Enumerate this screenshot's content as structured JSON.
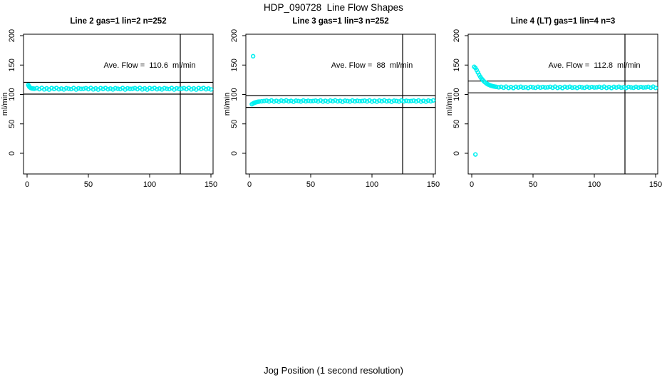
{
  "title": "HDP_090728  Line Flow Shapes",
  "xlabel": "Jog Position (1 second resolution)",
  "colors": {
    "point": "#00F0F0",
    "axis": "#000000"
  },
  "chart_data": [
    {
      "type": "scatter",
      "title": "Line 2 gas=1 lin=2 n=252",
      "annotation": "Ave. Flow =  110.6  ml/min",
      "ave_flow": 110.6,
      "n": 252,
      "ylabel": "ml/min",
      "xlim": [
        0,
        150
      ],
      "ylim": [
        0,
        200
      ],
      "x_ticks": [
        0,
        50,
        100,
        150
      ],
      "y_ticks": [
        0,
        50,
        100,
        150,
        200
      ],
      "hlines": [
        120.6,
        100.6
      ],
      "vline": 125,
      "points": [
        [
          1,
          116
        ],
        [
          1.5,
          114
        ],
        [
          2,
          112.5
        ],
        [
          3,
          111
        ],
        [
          4,
          110.3
        ],
        [
          5,
          110
        ],
        [
          6,
          109.8
        ],
        [
          8,
          110.7
        ],
        [
          10,
          109.1
        ],
        [
          12,
          111.1
        ],
        [
          14,
          108.7
        ],
        [
          16,
          110.3
        ],
        [
          18,
          108.4
        ],
        [
          20,
          110.8
        ],
        [
          22,
          109.4
        ],
        [
          24,
          111.0
        ],
        [
          26,
          108.9
        ],
        [
          28,
          110.1
        ],
        [
          30,
          108.6
        ],
        [
          32,
          110.6
        ],
        [
          34,
          109.8
        ],
        [
          36,
          109.2
        ],
        [
          38,
          110.9
        ],
        [
          40,
          108.5
        ],
        [
          42,
          110.4
        ],
        [
          44,
          109.6
        ],
        [
          46,
          109.8
        ],
        [
          48,
          110.7
        ],
        [
          50,
          109.1
        ],
        [
          52,
          111.1
        ],
        [
          54,
          108.7
        ],
        [
          56,
          110.3
        ],
        [
          58,
          108.4
        ],
        [
          60,
          110.8
        ],
        [
          62,
          109.4
        ],
        [
          64,
          111.0
        ],
        [
          66,
          108.9
        ],
        [
          68,
          110.1
        ],
        [
          70,
          108.6
        ],
        [
          72,
          110.6
        ],
        [
          74,
          109.8
        ],
        [
          76,
          109.2
        ],
        [
          78,
          110.9
        ],
        [
          80,
          108.5
        ],
        [
          82,
          110.4
        ],
        [
          84,
          109.6
        ],
        [
          86,
          109.8
        ],
        [
          88,
          110.7
        ],
        [
          90,
          109.1
        ],
        [
          92,
          111.1
        ],
        [
          94,
          108.7
        ],
        [
          96,
          110.3
        ],
        [
          98,
          108.4
        ],
        [
          100,
          110.8
        ],
        [
          102,
          109.4
        ],
        [
          104,
          111.0
        ],
        [
          106,
          108.9
        ],
        [
          108,
          110.1
        ],
        [
          110,
          108.6
        ],
        [
          112,
          110.6
        ],
        [
          114,
          109.8
        ],
        [
          116,
          109.2
        ],
        [
          118,
          110.9
        ],
        [
          120,
          108.5
        ],
        [
          122,
          110.4
        ],
        [
          124,
          109.6
        ],
        [
          126,
          109.8
        ],
        [
          128,
          110.7
        ],
        [
          130,
          109.1
        ],
        [
          132,
          111.1
        ],
        [
          134,
          108.7
        ],
        [
          136,
          110.3
        ],
        [
          138,
          108.4
        ],
        [
          140,
          110.8
        ],
        [
          142,
          109.4
        ],
        [
          144,
          111.0
        ],
        [
          146,
          108.9
        ],
        [
          148,
          110.1
        ],
        [
          150,
          108.6
        ]
      ]
    },
    {
      "type": "scatter",
      "title": "Line 3 gas=1 lin=3 n=252",
      "annotation": "Ave. Flow =  88  ml/min",
      "ave_flow": 88,
      "n": 252,
      "ylabel": "ml/min",
      "xlim": [
        0,
        150
      ],
      "ylim": [
        0,
        200
      ],
      "x_ticks": [
        0,
        50,
        100,
        150
      ],
      "y_ticks": [
        0,
        50,
        100,
        150,
        200
      ],
      "hlines": [
        98,
        78
      ],
      "vline": 125,
      "points": [
        [
          3,
          165
        ],
        [
          2,
          83.5
        ],
        [
          3,
          84.8
        ],
        [
          4,
          85.8
        ],
        [
          5,
          86.5
        ],
        [
          6,
          87.2
        ],
        [
          7,
          87.6
        ],
        [
          8,
          88.0
        ],
        [
          10,
          88.4
        ],
        [
          12,
          88.8
        ],
        [
          14,
          89.5
        ],
        [
          16,
          88.2
        ],
        [
          18,
          89.8
        ],
        [
          20,
          88.0
        ],
        [
          22,
          89.2
        ],
        [
          24,
          87.9
        ],
        [
          26,
          89.6
        ],
        [
          28,
          88.5
        ],
        [
          30,
          89.9
        ],
        [
          32,
          88.3
        ],
        [
          34,
          89.1
        ],
        [
          36,
          87.8
        ],
        [
          38,
          89.4
        ],
        [
          40,
          88.8
        ],
        [
          42,
          88.1
        ],
        [
          44,
          89.7
        ],
        [
          46,
          88.4
        ],
        [
          48,
          89.3
        ],
        [
          50,
          88.6
        ],
        [
          52,
          88.8
        ],
        [
          54,
          89.5
        ],
        [
          56,
          88.2
        ],
        [
          58,
          89.8
        ],
        [
          60,
          88.0
        ],
        [
          62,
          89.2
        ],
        [
          64,
          87.9
        ],
        [
          66,
          89.6
        ],
        [
          68,
          88.5
        ],
        [
          70,
          89.9
        ],
        [
          72,
          88.3
        ],
        [
          74,
          89.1
        ],
        [
          76,
          87.8
        ],
        [
          78,
          89.4
        ],
        [
          80,
          88.8
        ],
        [
          82,
          88.1
        ],
        [
          84,
          89.7
        ],
        [
          86,
          88.4
        ],
        [
          88,
          89.3
        ],
        [
          90,
          88.6
        ],
        [
          92,
          88.8
        ],
        [
          94,
          89.5
        ],
        [
          96,
          88.2
        ],
        [
          98,
          89.8
        ],
        [
          100,
          88.0
        ],
        [
          102,
          89.2
        ],
        [
          104,
          87.9
        ],
        [
          106,
          89.6
        ],
        [
          108,
          88.5
        ],
        [
          110,
          89.9
        ],
        [
          112,
          88.3
        ],
        [
          114,
          89.1
        ],
        [
          116,
          87.8
        ],
        [
          118,
          89.4
        ],
        [
          120,
          88.8
        ],
        [
          122,
          88.1
        ],
        [
          124,
          89.7
        ],
        [
          126,
          88.4
        ],
        [
          128,
          89.3
        ],
        [
          130,
          88.6
        ],
        [
          132,
          88.8
        ],
        [
          134,
          89.5
        ],
        [
          136,
          88.2
        ],
        [
          138,
          89.8
        ],
        [
          140,
          88.0
        ],
        [
          142,
          89.2
        ],
        [
          144,
          87.9
        ],
        [
          146,
          89.6
        ],
        [
          148,
          88.5
        ],
        [
          150,
          89.9
        ]
      ]
    },
    {
      "type": "scatter",
      "title": "Line 4 (LT) gas=1 lin=4 n=3",
      "annotation": "Ave. Flow =  112.8  ml/min",
      "ave_flow": 112.8,
      "n": 3,
      "ylabel": "ml/min",
      "xlim": [
        0,
        150
      ],
      "ylim": [
        0,
        200
      ],
      "x_ticks": [
        0,
        50,
        100,
        150
      ],
      "y_ticks": [
        0,
        50,
        100,
        150,
        200
      ],
      "hlines": [
        122.8,
        102.8
      ],
      "vline": 125,
      "points": [
        [
          3,
          -2
        ],
        [
          2,
          147
        ],
        [
          3,
          145
        ],
        [
          4,
          141.5
        ],
        [
          5,
          137.5
        ],
        [
          6,
          133.5
        ],
        [
          7,
          130
        ],
        [
          8,
          127
        ],
        [
          9,
          124.5
        ],
        [
          10,
          122.3
        ],
        [
          11,
          120.4
        ],
        [
          12,
          118.8
        ],
        [
          13,
          117.5
        ],
        [
          14,
          116.4
        ],
        [
          15,
          115.5
        ],
        [
          16,
          114.8
        ],
        [
          17,
          114.2
        ],
        [
          18,
          113.7
        ],
        [
          19,
          113.3
        ],
        [
          20,
          113
        ],
        [
          22,
          112.2
        ],
        [
          24,
          113.0
        ],
        [
          26,
          111.5
        ],
        [
          28,
          113.2
        ],
        [
          30,
          111.2
        ],
        [
          32,
          112.6
        ],
        [
          34,
          111.0
        ],
        [
          36,
          112.9
        ],
        [
          38,
          111.8
        ],
        [
          40,
          113.1
        ],
        [
          42,
          111.6
        ],
        [
          44,
          112.4
        ],
        [
          46,
          111.1
        ],
        [
          48,
          112.8
        ],
        [
          50,
          112.0
        ],
        [
          52,
          111.4
        ],
        [
          54,
          112.9
        ],
        [
          56,
          111.7
        ],
        [
          58,
          112.7
        ],
        [
          60,
          111.9
        ],
        [
          62,
          112.2
        ],
        [
          64,
          113.0
        ],
        [
          66,
          111.5
        ],
        [
          68,
          113.2
        ],
        [
          70,
          111.2
        ],
        [
          72,
          112.6
        ],
        [
          74,
          111.0
        ],
        [
          76,
          112.9
        ],
        [
          78,
          111.8
        ],
        [
          80,
          113.1
        ],
        [
          82,
          111.6
        ],
        [
          84,
          112.4
        ],
        [
          86,
          111.1
        ],
        [
          88,
          112.8
        ],
        [
          90,
          112.0
        ],
        [
          92,
          111.4
        ],
        [
          94,
          112.9
        ],
        [
          96,
          111.7
        ],
        [
          98,
          112.7
        ],
        [
          100,
          111.9
        ],
        [
          102,
          112.2
        ],
        [
          104,
          113.0
        ],
        [
          106,
          111.5
        ],
        [
          108,
          113.2
        ],
        [
          110,
          111.2
        ],
        [
          112,
          112.6
        ],
        [
          114,
          111.0
        ],
        [
          116,
          112.9
        ],
        [
          118,
          111.8
        ],
        [
          120,
          113.1
        ],
        [
          122,
          111.6
        ],
        [
          124,
          112.4
        ],
        [
          126,
          111.1
        ],
        [
          128,
          112.8
        ],
        [
          130,
          112.0
        ],
        [
          132,
          111.4
        ],
        [
          134,
          112.9
        ],
        [
          136,
          111.7
        ],
        [
          138,
          112.7
        ],
        [
          140,
          111.9
        ],
        [
          142,
          112.2
        ],
        [
          144,
          113.0
        ],
        [
          146,
          111.5
        ],
        [
          148,
          113.2
        ],
        [
          150,
          111.2
        ]
      ]
    }
  ]
}
